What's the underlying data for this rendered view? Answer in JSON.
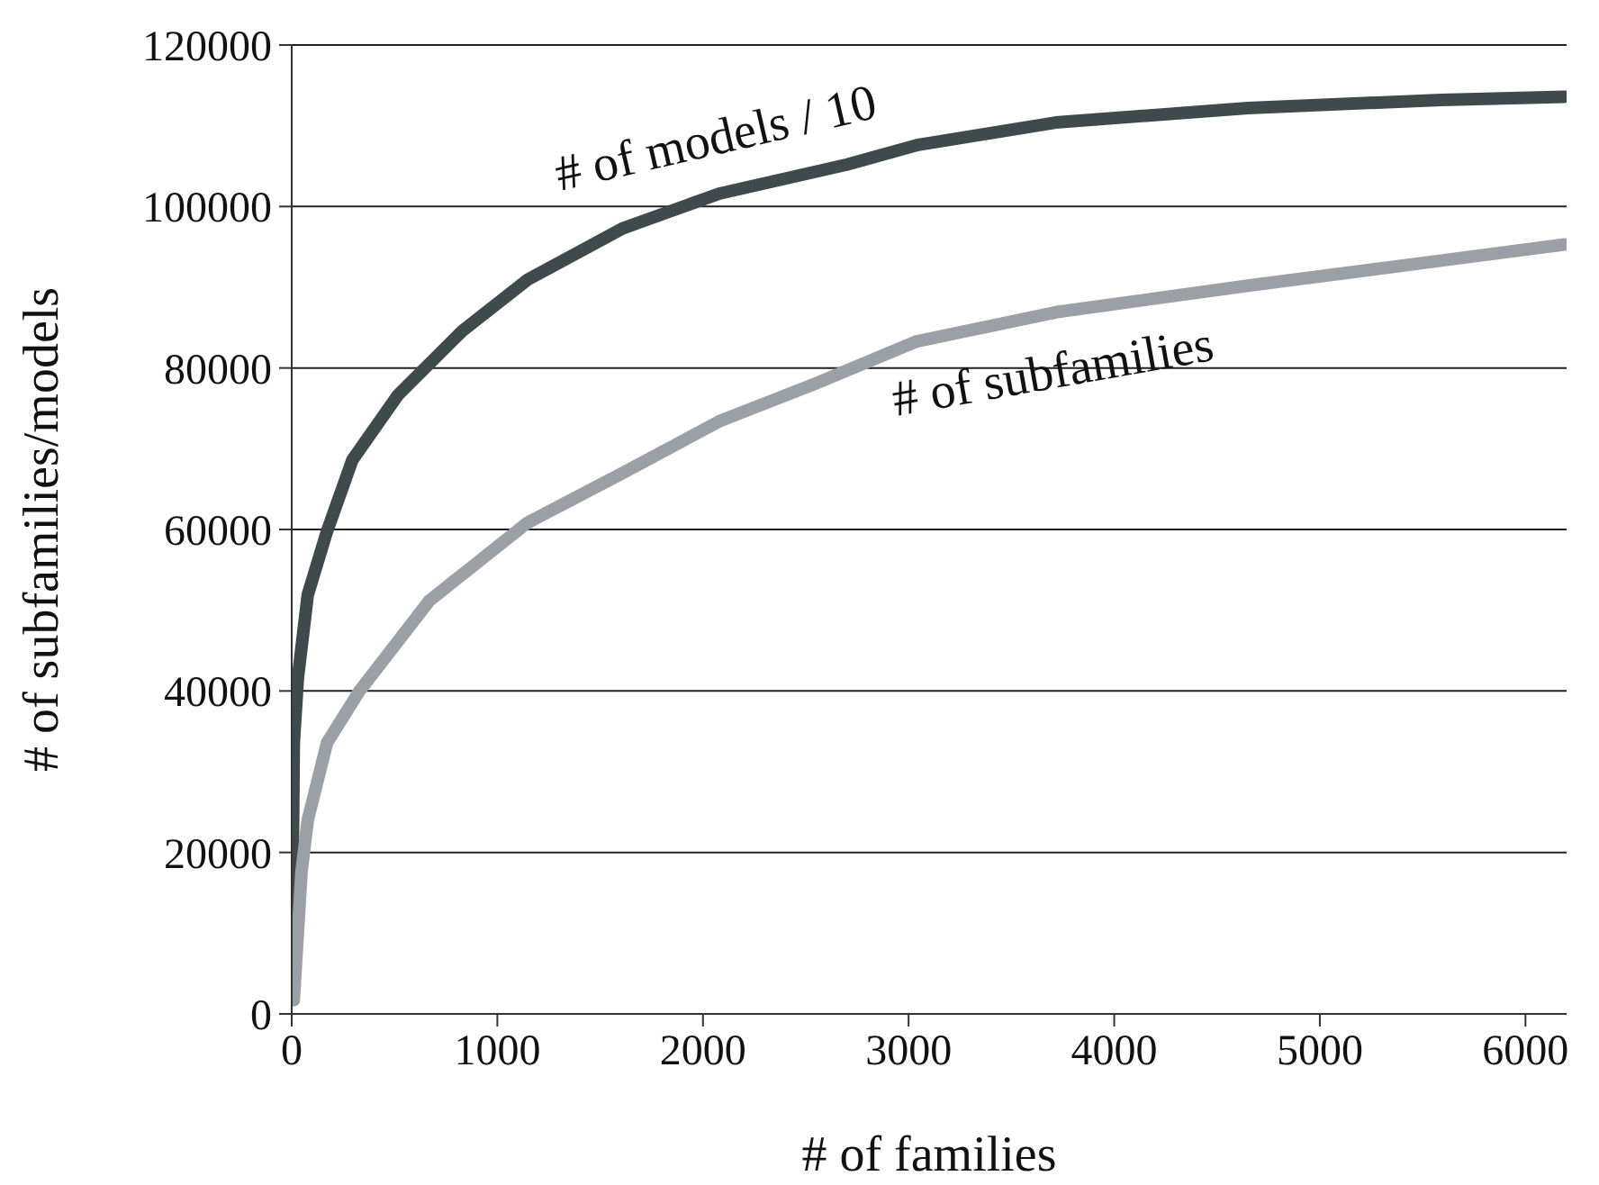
{
  "chart_data": {
    "type": "line",
    "xlabel": "# of families",
    "ylabel": "# of subfamilies/models",
    "xlim": [
      0,
      6200
    ],
    "xticks": [
      0,
      1000,
      2000,
      3000,
      4000,
      5000,
      6000
    ],
    "ylim": [
      0,
      120000
    ],
    "yticks": [
      0,
      20000,
      40000,
      60000,
      80000,
      100000,
      120000
    ],
    "grid": "y",
    "legend": false,
    "marker": "none",
    "line_style": "solid",
    "series": [
      {
        "name": "# of models / 10",
        "color": "#3f4a4d",
        "x": [
          0,
          10,
          30,
          78,
          172,
          295,
          515,
          830,
          1145,
          1610,
          2080,
          2700,
          3040,
          3715,
          4650,
          5590,
          6190
        ],
        "values": [
          3000,
          33500,
          41600,
          51900,
          59800,
          68600,
          76600,
          84600,
          90900,
          97300,
          101600,
          105200,
          107600,
          110400,
          112200,
          113200,
          113600
        ]
      },
      {
        "name": "# of subfamilies",
        "color": "#9aa0a6",
        "x": [
          10,
          48,
          78,
          172,
          330,
          670,
          1145,
          1610,
          2080,
          2550,
          3040,
          3715,
          4650,
          5590,
          6190
        ],
        "values": [
          1700,
          17700,
          24000,
          33600,
          40000,
          51200,
          60800,
          67000,
          73400,
          78100,
          83300,
          86900,
          90200,
          93300,
          95300
        ]
      }
    ]
  }
}
